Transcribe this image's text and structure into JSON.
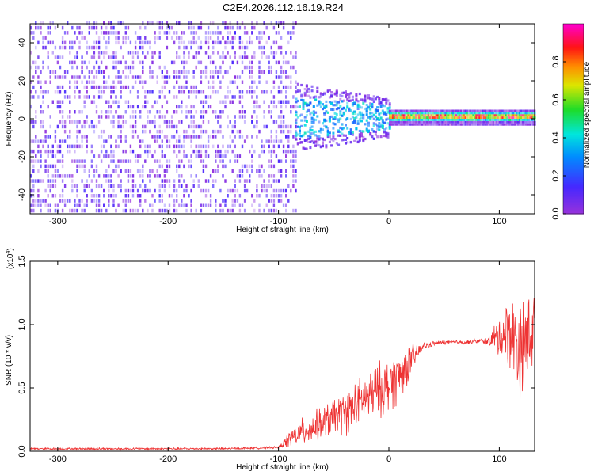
{
  "title": "C2E4.2026.112.16.19.R24",
  "colors": {
    "snr_line": "#ee3333",
    "axis": "#000000",
    "background": "#ffffff"
  },
  "chart_data": [
    {
      "type": "heatmap",
      "title": "C2E4.2026.112.16.19.R24",
      "xlabel": "Height of straight line (km)",
      "ylabel": "Frequency (Hz)",
      "xlim": [
        -325,
        132
      ],
      "ylim": [
        -50,
        50
      ],
      "x_ticks": [
        -300,
        -200,
        -100,
        0,
        100
      ],
      "x_tick_labels": [
        "-300",
        "-200",
        "-100",
        "0",
        "100"
      ],
      "y_ticks": [
        -40,
        -20,
        0,
        20,
        40
      ],
      "y_tick_labels": [
        "-40",
        "-20",
        "0",
        "20",
        "40"
      ],
      "colorbar": {
        "label": "Normalized spectral amplitude",
        "range": [
          0,
          1
        ],
        "ticks": [
          0,
          0.2,
          0.4,
          0.6,
          0.8
        ],
        "tick_labels": [
          "0.0",
          "0.2",
          "0.4",
          "0.6",
          "0.8"
        ],
        "colormap": "rainbow (purple-blue-cyan-green-yellow-orange-red-magenta)"
      },
      "regions": [
        {
          "x_range": [
            -325,
            -85
          ],
          "freq_range": [
            -50,
            50
          ],
          "amplitude_range": [
            0.0,
            0.15
          ],
          "description": "broadband noise"
        },
        {
          "x_range": [
            -85,
            0
          ],
          "freq_center": 0,
          "freq_halfwidth": 8,
          "amplitude_range": [
            0.2,
            0.45
          ]
        },
        {
          "x_range": [
            0,
            132
          ],
          "freq_center": 1,
          "freq_halfwidth": 2,
          "amplitude_range": [
            0.5,
            1.0
          ]
        }
      ],
      "grid": false
    },
    {
      "type": "line",
      "xlabel": "Height of straight line (km)",
      "ylabel": "SNR (10 * v/v)",
      "y_scale_label": "(x10",
      "y_scale_exponent": "4",
      "y_scale_closer": ")",
      "xlim": [
        -325,
        132
      ],
      "ylim": [
        0,
        1.5
      ],
      "x_ticks": [
        -300,
        -200,
        -100,
        0,
        100
      ],
      "x_tick_labels": [
        "-300",
        "-200",
        "-100",
        "0",
        "100"
      ],
      "y_ticks": [
        0,
        0.5,
        1.0,
        1.5
      ],
      "y_tick_labels": [
        "0.0",
        "0.5",
        "1.0",
        "1.5"
      ],
      "grid": false,
      "series": [
        {
          "x": [
            -325,
            -300,
            -250,
            -200,
            -150,
            -100,
            -90,
            -80,
            -70,
            -60,
            -50,
            -40,
            -30,
            -20,
            -10,
            0,
            10,
            20,
            30,
            40,
            50,
            60,
            70,
            80,
            90,
            100,
            110,
            120,
            132
          ],
          "y": [
            0.02,
            0.02,
            0.02,
            0.02,
            0.02,
            0.03,
            0.1,
            0.15,
            0.18,
            0.22,
            0.27,
            0.3,
            0.36,
            0.42,
            0.48,
            0.52,
            0.6,
            0.72,
            0.82,
            0.85,
            0.86,
            0.86,
            0.86,
            0.87,
            0.87,
            0.9,
            0.95,
            0.8,
            1.0
          ],
          "spread": [
            0.01,
            0.01,
            0.01,
            0.01,
            0.01,
            0.01,
            0.08,
            0.12,
            0.14,
            0.16,
            0.18,
            0.2,
            0.22,
            0.24,
            0.25,
            0.26,
            0.24,
            0.15,
            0.04,
            0.02,
            0.02,
            0.02,
            0.02,
            0.02,
            0.04,
            0.2,
            0.35,
            0.45,
            0.4
          ]
        }
      ]
    }
  ]
}
